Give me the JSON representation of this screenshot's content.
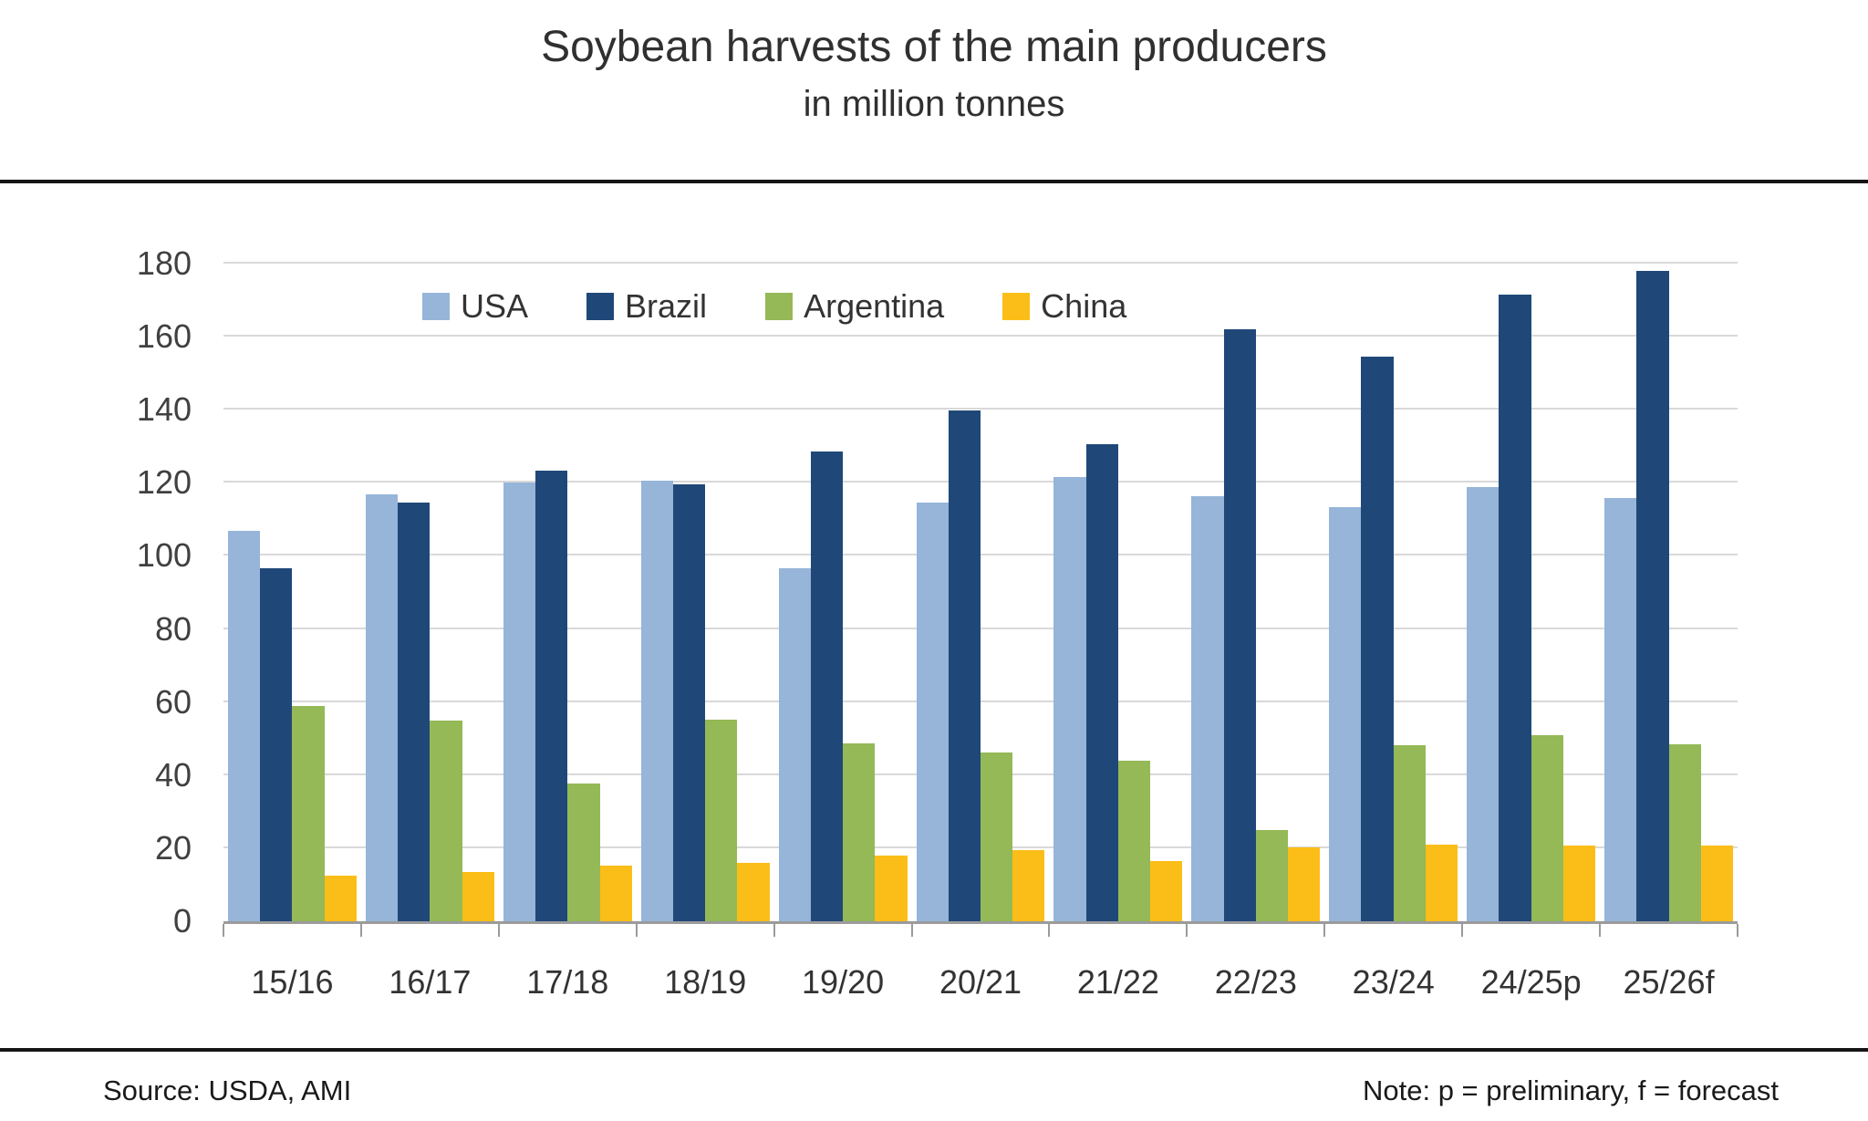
{
  "chart_data": {
    "type": "bar",
    "title": "Soybean harvests of the main producers",
    "subtitle": "in million tonnes",
    "categories": [
      "15/16",
      "16/17",
      "17/18",
      "18/19",
      "19/20",
      "20/21",
      "21/22",
      "22/23",
      "23/24",
      "24/25p",
      "25/26f"
    ],
    "series": [
      {
        "name": "USA",
        "color": "#96B5D9",
        "values": [
          106.9,
          116.9,
          120.1,
          120.5,
          96.7,
          114.7,
          121.5,
          116.4,
          113.3,
          118.8,
          115.9
        ]
      },
      {
        "name": "Brazil",
        "color": "#1F4878",
        "values": [
          96.5,
          114.6,
          123.3,
          119.7,
          128.5,
          139.9,
          130.5,
          162.0,
          154.6,
          171.5,
          178.0
        ]
      },
      {
        "name": "Argentina",
        "color": "#94B956",
        "values": [
          58.8,
          55.0,
          37.8,
          55.3,
          48.8,
          46.2,
          43.9,
          25.0,
          48.2,
          50.9,
          48.5
        ]
      },
      {
        "name": "China",
        "color": "#FBBE18",
        "values": [
          12.4,
          13.6,
          15.3,
          15.9,
          18.1,
          19.6,
          16.4,
          20.3,
          20.9,
          20.7,
          20.7
        ]
      }
    ],
    "xlabel": "",
    "ylabel": "",
    "ylim": [
      0,
      180
    ],
    "ytick_step": 20,
    "grid": true,
    "legend_position": "top-inside",
    "grid_color": "#d9d9d9",
    "axis_color": "#9b9b9b"
  },
  "footer": {
    "source": "Source: USDA, AMI",
    "note": "Note: p = preliminary, f = forecast"
  }
}
